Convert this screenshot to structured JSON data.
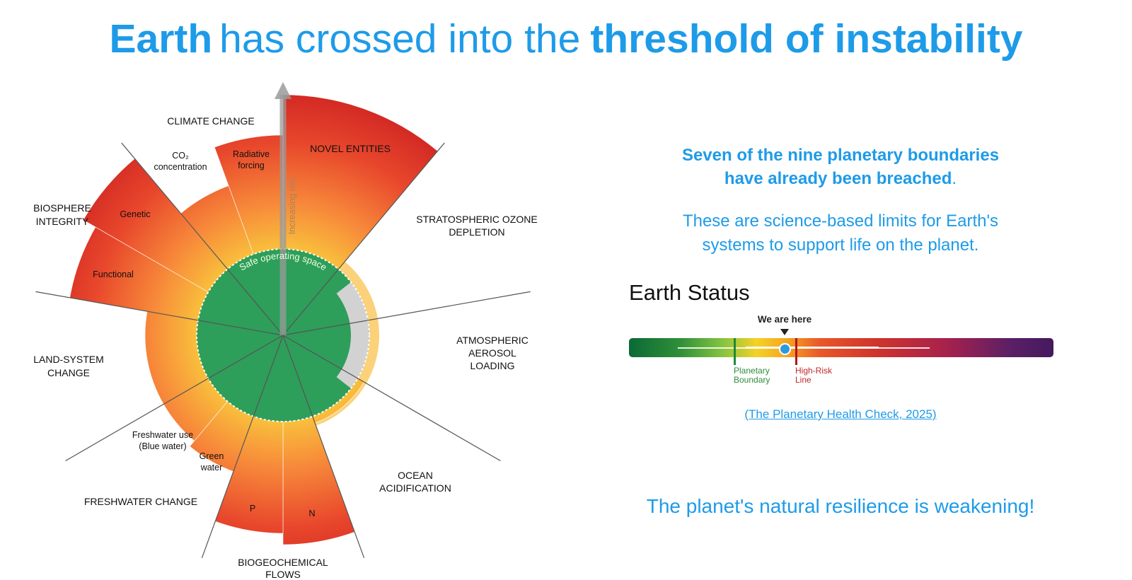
{
  "title": {
    "part1": "Earth",
    "part2": "has crossed into the",
    "part3": "threshold of instability"
  },
  "diagram": {
    "climate_change": "CLIMATE CHANGE",
    "co2": [
      "CO₂",
      "concentration"
    ],
    "radiative_forcing": [
      "Radiative",
      "forcing"
    ],
    "novel_entities": "NOVEL ENTITIES",
    "ozone": [
      "STRATOSPHERIC OZONE",
      "DEPLETION"
    ],
    "biosphere": [
      "BIOSPHERE",
      "INTEGRITY"
    ],
    "genetic": "Genetic",
    "functional": "Functional",
    "aerosol": [
      "ATMOSPHERIC",
      "AEROSOL",
      "LOADING"
    ],
    "land_system": [
      "LAND-SYSTEM",
      "CHANGE"
    ],
    "blue_water": [
      "Freshwater use",
      "(Blue water)"
    ],
    "green_water": [
      "Green",
      "water"
    ],
    "ocean": [
      "OCEAN",
      "ACIDIFICATION"
    ],
    "freshwater_change": "FRESHWATER CHANGE",
    "p": "P",
    "n": "N",
    "biogeochemical": [
      "BIOGEOCHEMICAL",
      "FLOWS"
    ],
    "increasing_risk": "Increasing risk",
    "safe_space": "Safe operating space"
  },
  "summary": {
    "bold": "Seven of the nine planetary boundaries have already been breached",
    "end": "."
  },
  "description": "These are science-based limits for Earth's systems to support life on the planet.",
  "status": {
    "heading": "Earth Status",
    "marker": "We are here",
    "boundary": [
      "Planetary",
      "Boundary"
    ],
    "high_risk": [
      "High-Risk",
      "Line"
    ]
  },
  "source": "(The Planetary Health Check, 2025)",
  "closing": "The planet's natural resilience is weakening!"
}
